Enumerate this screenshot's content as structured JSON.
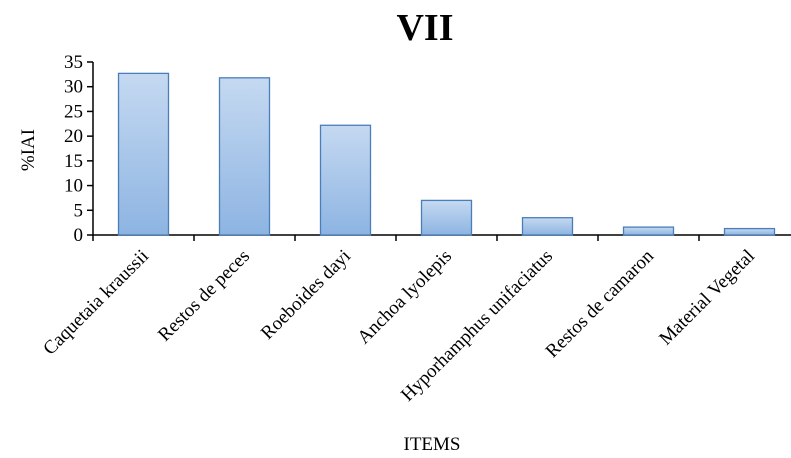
{
  "chart_data": {
    "type": "bar",
    "title": "VII",
    "xlabel": "ITEMS",
    "ylabel": "%IAI",
    "categories": [
      "Caquetaia kraussii",
      "Restos de peces",
      "Roeboides dayi",
      "Anchoa lyolepis",
      "Hyporhamphus unifaciatus",
      "Restos de camaron",
      "Material Vegetal"
    ],
    "values": [
      32.7,
      31.8,
      22.2,
      7.0,
      3.5,
      1.6,
      1.3
    ],
    "ylim": [
      0,
      35
    ],
    "yticks": [
      0,
      5,
      10,
      15,
      20,
      25,
      30,
      35
    ],
    "grid": false,
    "legend": "none",
    "colors": {
      "bar_top": "#c5d9f1",
      "bar_bottom": "#8db4e2",
      "bar_stroke": "#4a7ebb",
      "axis": "#000000"
    }
  }
}
